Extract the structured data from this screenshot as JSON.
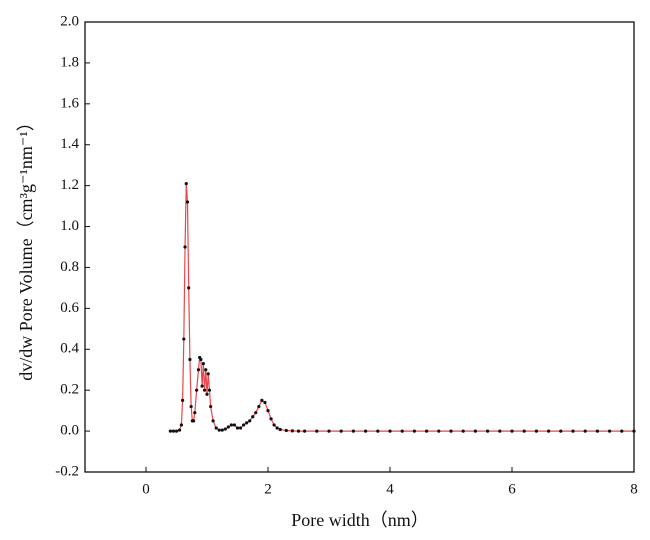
{
  "chart_data": {
    "type": "line",
    "xlabel": "Pore width（nm）",
    "ylabel": "dv/dw Pore Volume（cm³g⁻¹nm⁻¹）",
    "xlim": [
      -1,
      8
    ],
    "xticks": [
      0,
      2,
      4,
      6,
      8
    ],
    "ylim": [
      -0.2,
      2.0
    ],
    "yticks": [
      -0.2,
      {
        "value": 0,
        "label": "0.0"
      },
      0.2,
      0.4,
      0.6,
      0.8,
      {
        "value": 1,
        "label": "1.0"
      },
      1.2,
      1.4,
      1.6,
      1.8,
      {
        "value": 2,
        "label": "2.0"
      }
    ],
    "grid": false,
    "x": [
      0.4,
      0.45,
      0.5,
      0.55,
      0.58,
      0.6,
      0.62,
      0.64,
      0.66,
      0.68,
      0.7,
      0.72,
      0.74,
      0.76,
      0.78,
      0.8,
      0.83,
      0.86,
      0.88,
      0.9,
      0.92,
      0.94,
      0.96,
      0.98,
      1.0,
      1.02,
      1.04,
      1.06,
      1.1,
      1.15,
      1.2,
      1.25,
      1.3,
      1.35,
      1.4,
      1.45,
      1.5,
      1.55,
      1.6,
      1.65,
      1.7,
      1.75,
      1.8,
      1.85,
      1.9,
      1.95,
      2.0,
      2.05,
      2.1,
      2.15,
      2.2,
      2.3,
      2.4,
      2.5,
      2.6,
      2.8,
      3.0,
      3.2,
      3.4,
      3.6,
      3.8,
      4.0,
      4.2,
      4.4,
      4.6,
      4.8,
      5.0,
      5.2,
      5.4,
      5.6,
      5.8,
      6.0,
      6.2,
      6.4,
      6.6,
      6.8,
      7.0,
      7.2,
      7.4,
      7.6,
      7.8,
      8.0
    ],
    "series": [
      {
        "line_color": "#e8474a",
        "marker_color": "#111111",
        "values": [
          0,
          0,
          0,
          0.005,
          0.03,
          0.15,
          0.45,
          0.9,
          1.21,
          1.12,
          0.7,
          0.35,
          0.12,
          0.05,
          0.05,
          0.09,
          0.2,
          0.3,
          0.36,
          0.35,
          0.22,
          0.33,
          0.2,
          0.3,
          0.18,
          0.28,
          0.2,
          0.12,
          0.05,
          0.015,
          0.005,
          0.005,
          0.01,
          0.02,
          0.03,
          0.03,
          0.015,
          0.015,
          0.03,
          0.04,
          0.05,
          0.07,
          0.09,
          0.12,
          0.15,
          0.14,
          0.1,
          0.06,
          0.03,
          0.015,
          0.008,
          0.003,
          0.001,
          0,
          0,
          0,
          0,
          0,
          0,
          0,
          0,
          0,
          0,
          0,
          0,
          0,
          0,
          0,
          0,
          0,
          0,
          0,
          0,
          0,
          0,
          0,
          0,
          0,
          0,
          0,
          0,
          0
        ]
      }
    ]
  }
}
